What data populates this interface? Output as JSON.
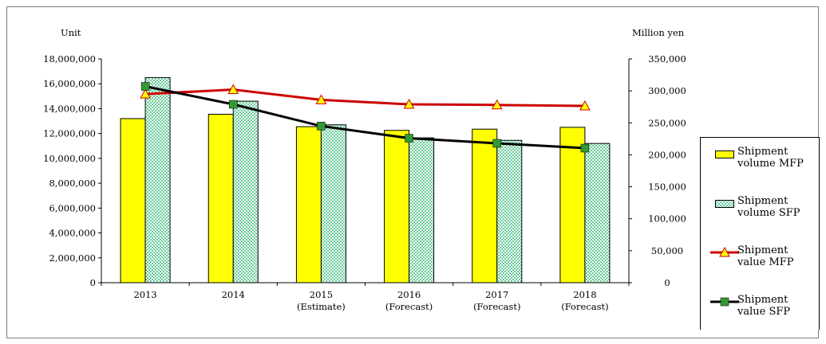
{
  "chart_data": {
    "type": "bar+line",
    "categories": [
      {
        "line1": "2013",
        "line2": ""
      },
      {
        "line1": "2014",
        "line2": ""
      },
      {
        "line1": "2015",
        "line2": "(Estimate)"
      },
      {
        "line1": "2016",
        "line2": "(Forecast)"
      },
      {
        "line1": "2017",
        "line2": "(Forecast)"
      },
      {
        "line1": "2018",
        "line2": "(Forecast)"
      }
    ],
    "left_axis": {
      "label": "Unit",
      "range": [
        0,
        18000000
      ],
      "ticks": [
        "0",
        "2,000,000",
        "4,000,000",
        "6,000,000",
        "8,000,000",
        "10,000,000",
        "12,000,000",
        "14,000,000",
        "16,000,000",
        "18,000,000"
      ]
    },
    "right_axis": {
      "label": "Million yen",
      "range": [
        0,
        350000
      ],
      "ticks": [
        "0",
        "50,000",
        "100,000",
        "150,000",
        "200,000",
        "250,000",
        "300,000",
        "350,000"
      ]
    },
    "series": [
      {
        "name": "Shipment volume MFP",
        "kind": "bar",
        "axis": "left",
        "color": "#ffff00",
        "values": [
          13200000,
          13550000,
          12550000,
          12250000,
          12350000,
          12500000
        ]
      },
      {
        "name": "Shipment volume SFP",
        "kind": "bar",
        "axis": "left",
        "color": "#66cc99",
        "pattern": "dots",
        "values": [
          16500000,
          14600000,
          12700000,
          11650000,
          11450000,
          11200000
        ]
      },
      {
        "name": "Shipment value MFP",
        "kind": "line",
        "axis": "right",
        "color": "#cc0000",
        "marker": "triangle",
        "marker_color": "#ffff00",
        "values": [
          295000,
          302000,
          286000,
          279000,
          278000,
          276500
        ]
      },
      {
        "name": "Shipment value SFP",
        "kind": "line",
        "axis": "right",
        "color": "#000000",
        "marker": "square",
        "marker_color": "#339933",
        "values": [
          307000,
          279000,
          245000,
          226000,
          218000,
          210500
        ]
      }
    ],
    "legend": {
      "position": "right",
      "items": [
        {
          "line1": "Shipment",
          "line2": "volume MFP"
        },
        {
          "line1": "Shipment",
          "line2": "volume SFP"
        },
        {
          "line1": "Shipment",
          "line2": "value MFP"
        },
        {
          "line1": "Shipment",
          "line2": "value SFP"
        }
      ]
    },
    "grid": false
  }
}
